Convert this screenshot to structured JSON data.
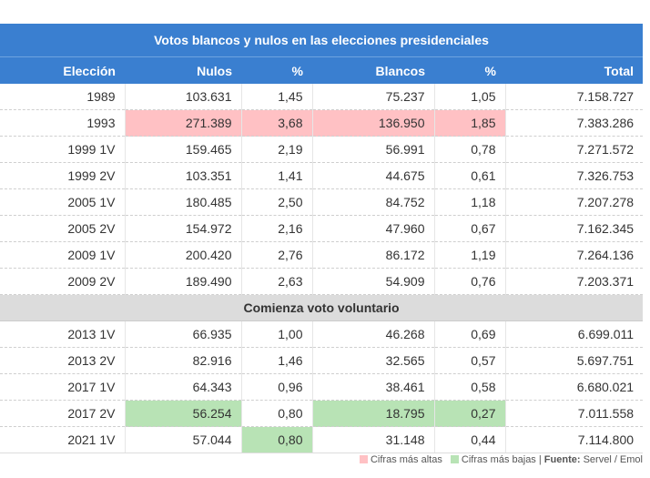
{
  "table": {
    "title": "Votos blancos y nulos en las elecciones presidenciales",
    "headers": [
      "Elección",
      "Nulos",
      "%",
      "Blancos",
      "%",
      "Total"
    ],
    "rows_before": [
      {
        "eleccion": "1989",
        "nulos": "103.631",
        "nulos_pct": "1,45",
        "blancos": "75.237",
        "blancos_pct": "1,05",
        "total": "7.158.727",
        "hl": []
      },
      {
        "eleccion": "1993",
        "nulos": "271.389",
        "nulos_pct": "3,68",
        "blancos": "136.950",
        "blancos_pct": "1,85",
        "total": "7.383.286",
        "hl": [
          "nulos_high",
          "nulos_pct_high",
          "blancos_high",
          "blancos_pct_high"
        ]
      },
      {
        "eleccion": "1999 1V",
        "nulos": "159.465",
        "nulos_pct": "2,19",
        "blancos": "56.991",
        "blancos_pct": "0,78",
        "total": "7.271.572",
        "hl": []
      },
      {
        "eleccion": "1999 2V",
        "nulos": "103.351",
        "nulos_pct": "1,41",
        "blancos": "44.675",
        "blancos_pct": "0,61",
        "total": "7.326.753",
        "hl": []
      },
      {
        "eleccion": "2005 1V",
        "nulos": "180.485",
        "nulos_pct": "2,50",
        "blancos": "84.752",
        "blancos_pct": "1,18",
        "total": "7.207.278",
        "hl": []
      },
      {
        "eleccion": "2005 2V",
        "nulos": "154.972",
        "nulos_pct": "2,16",
        "blancos": "47.960",
        "blancos_pct": "0,67",
        "total": "7.162.345",
        "hl": []
      },
      {
        "eleccion": "2009 1V",
        "nulos": "200.420",
        "nulos_pct": "2,76",
        "blancos": "86.172",
        "blancos_pct": "1,19",
        "total": "7.264.136",
        "hl": []
      },
      {
        "eleccion": "2009 2V",
        "nulos": "189.490",
        "nulos_pct": "2,63",
        "blancos": "54.909",
        "blancos_pct": "0,76",
        "total": "7.203.371",
        "hl": []
      }
    ],
    "section_label": "Comienza voto voluntario",
    "rows_after": [
      {
        "eleccion": "2013 1V",
        "nulos": "66.935",
        "nulos_pct": "1,00",
        "blancos": "46.268",
        "blancos_pct": "0,69",
        "total": "6.699.011",
        "hl": []
      },
      {
        "eleccion": "2013 2V",
        "nulos": "82.916",
        "nulos_pct": "1,46",
        "blancos": "32.565",
        "blancos_pct": "0,57",
        "total": "5.697.751",
        "hl": []
      },
      {
        "eleccion": "2017 1V",
        "nulos": "64.343",
        "nulos_pct": "0,96",
        "blancos": "38.461",
        "blancos_pct": "0,58",
        "total": "6.680.021",
        "hl": []
      },
      {
        "eleccion": "2017 2V",
        "nulos": "56.254",
        "nulos_pct": "0,80",
        "blancos": "18.795",
        "blancos_pct": "0,27",
        "total": "7.011.558",
        "hl": [
          "nulos_low",
          "blancos_low",
          "blancos_pct_low"
        ]
      },
      {
        "eleccion": "2021 1V",
        "nulos": "57.044",
        "nulos_pct": "0,80",
        "blancos": "31.148",
        "blancos_pct": "0,44",
        "total": "7.114.800",
        "hl": [
          "nulos_pct_low"
        ]
      }
    ]
  },
  "legend": {
    "high_label": "Cifras más altas",
    "low_label": "Cifras más bajas",
    "separator": " | ",
    "source_label": "Fuente:",
    "source_value": " Servel / Emol"
  },
  "colors": {
    "header": "#3a7fd0",
    "high": "#ffc1c4",
    "low": "#b8e3b5",
    "section": "#dcdcdc"
  }
}
